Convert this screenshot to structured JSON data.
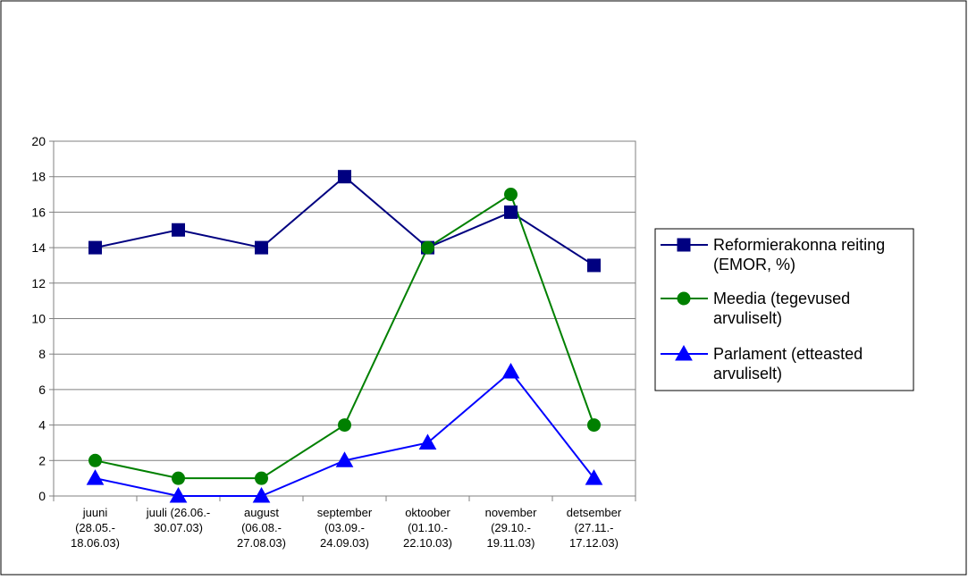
{
  "chart_data": {
    "type": "line",
    "title": "",
    "xlabel": "",
    "ylabel": "",
    "ylim": [
      0,
      20
    ],
    "yticks": [
      0,
      2,
      4,
      6,
      8,
      10,
      12,
      14,
      16,
      18,
      20
    ],
    "grid": true,
    "legend_position": "right",
    "categories": [
      [
        "juuni",
        "(28.05.-",
        "18.06.03)"
      ],
      [
        "juuli (26.06.-",
        "30.07.03)"
      ],
      [
        "august",
        "(06.08.-",
        "27.08.03)"
      ],
      [
        "september",
        "(03.09.-",
        "24.09.03)"
      ],
      [
        "oktoober",
        "(01.10.-",
        "22.10.03)"
      ],
      [
        "november",
        "(29.10.-",
        "19.11.03)"
      ],
      [
        "detsember",
        "(27.11.-",
        "17.12.03)"
      ]
    ],
    "series": [
      {
        "name": [
          "Reformierakonna reiting",
          "(EMOR, %)"
        ],
        "values": [
          14,
          15,
          14,
          18,
          14,
          16,
          13
        ],
        "color": "#000080",
        "marker": "square"
      },
      {
        "name": [
          "Meedia (tegevused",
          "arvuliselt)"
        ],
        "values": [
          2,
          1,
          1,
          4,
          14,
          17,
          4
        ],
        "color": "#008000",
        "marker": "circle"
      },
      {
        "name": [
          "Parlament (etteasted",
          "arvuliselt)"
        ],
        "values": [
          1,
          0,
          0,
          2,
          3,
          7,
          1
        ],
        "color": "#0000ff",
        "marker": "triangle"
      }
    ]
  }
}
